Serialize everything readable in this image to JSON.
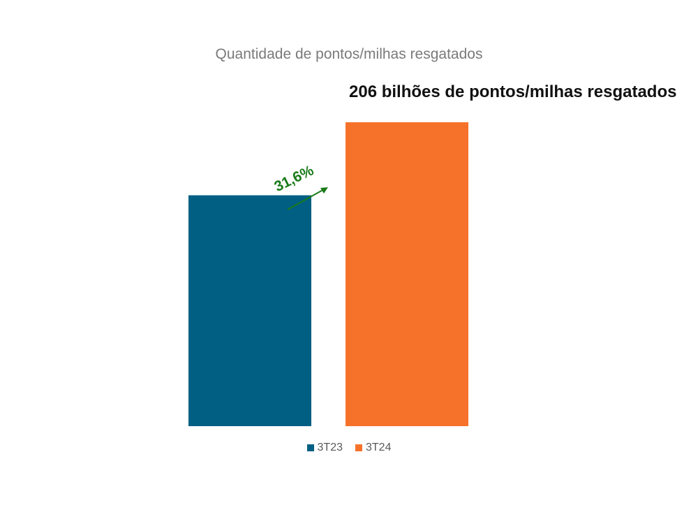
{
  "chart_data": {
    "type": "bar",
    "title": "Quantidade de pontos/milhas resgatados",
    "categories": [
      "3T23",
      "3T24"
    ],
    "values": [
      156.5,
      206
    ],
    "colors": [
      "#005f83",
      "#f6722a"
    ],
    "ylim": [
      0,
      206
    ],
    "grid": false,
    "legend_position": "bottom",
    "annotations": {
      "headline": "206 bilhões de pontos/milhas resgatados",
      "growth": "31,6%",
      "growth_color": "#1a7a1a"
    }
  }
}
